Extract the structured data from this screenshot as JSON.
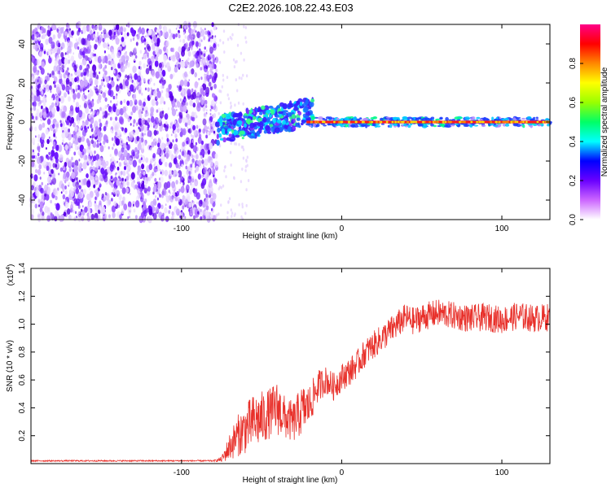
{
  "title": "C2E2.2026.108.22.43.E03",
  "chart_data": [
    {
      "type": "heatmap",
      "name": "spectrogram",
      "xlabel": "Height of straight line (km)",
      "ylabel": "Frequency (Hz)",
      "xlim": [
        -194,
        130
      ],
      "ylim": [
        -50,
        50
      ],
      "x_ticks": [
        -100,
        0,
        100
      ],
      "y_ticks": [
        -40,
        -20,
        0,
        20,
        40
      ],
      "noise_region_x": [
        -194,
        -78
      ],
      "transition_region_x": [
        -78,
        -18
      ],
      "signal_line_frequency": 0,
      "colorbar": {
        "label": "Normalized spectral amplitude",
        "range": [
          0,
          1
        ],
        "ticks": [
          "0.0",
          "0.2",
          "0.4",
          "0.6",
          "0.8"
        ],
        "colors": [
          "#ffffff",
          "#cc66ff",
          "#6a00ff",
          "#0000ff",
          "#00ffff",
          "#00ff66",
          "#99ff00",
          "#ffff00",
          "#ff8800",
          "#ff0000",
          "#ff0088"
        ]
      }
    },
    {
      "type": "line",
      "name": "snr",
      "xlabel": "Height of straight line (km)",
      "ylabel": "SNR (10 * v/v)",
      "y_multiplier": "(x10",
      "y_multiplier_exp": "4",
      "y_multiplier_close": ")",
      "xlim": [
        -194,
        130
      ],
      "ylim": [
        0,
        1.4
      ],
      "x_ticks": [
        -100,
        0,
        100
      ],
      "y_ticks": [
        0.2,
        0.4,
        0.6,
        0.8,
        1.0,
        1.2,
        1.4
      ],
      "color": "#e8302a",
      "x": [
        -194,
        -150,
        -100,
        -80,
        -75,
        -70,
        -65,
        -60,
        -55,
        -50,
        -45,
        -40,
        -35,
        -30,
        -25,
        -20,
        -15,
        -10,
        -5,
        0,
        5,
        10,
        15,
        20,
        25,
        30,
        35,
        40,
        45,
        50,
        60,
        70,
        80,
        90,
        100,
        110,
        120,
        130
      ],
      "y": [
        0.02,
        0.02,
        0.02,
        0.02,
        0.03,
        0.12,
        0.2,
        0.25,
        0.3,
        0.32,
        0.36,
        0.4,
        0.32,
        0.3,
        0.38,
        0.42,
        0.55,
        0.6,
        0.55,
        0.62,
        0.66,
        0.72,
        0.8,
        0.85,
        0.9,
        0.95,
        1.0,
        1.05,
        1.02,
        1.05,
        1.08,
        1.06,
        1.04,
        1.05,
        1.03,
        1.06,
        1.04,
        1.05
      ],
      "noise_amplitude": [
        0.005,
        0.005,
        0.005,
        0.005,
        0.02,
        0.1,
        0.15,
        0.18,
        0.2,
        0.2,
        0.18,
        0.2,
        0.15,
        0.15,
        0.18,
        0.15,
        0.12,
        0.1,
        0.1,
        0.1,
        0.1,
        0.1,
        0.1,
        0.1,
        0.1,
        0.1,
        0.1,
        0.1,
        0.1,
        0.1,
        0.1,
        0.1,
        0.1,
        0.1,
        0.1,
        0.1,
        0.1,
        0.1
      ]
    }
  ]
}
